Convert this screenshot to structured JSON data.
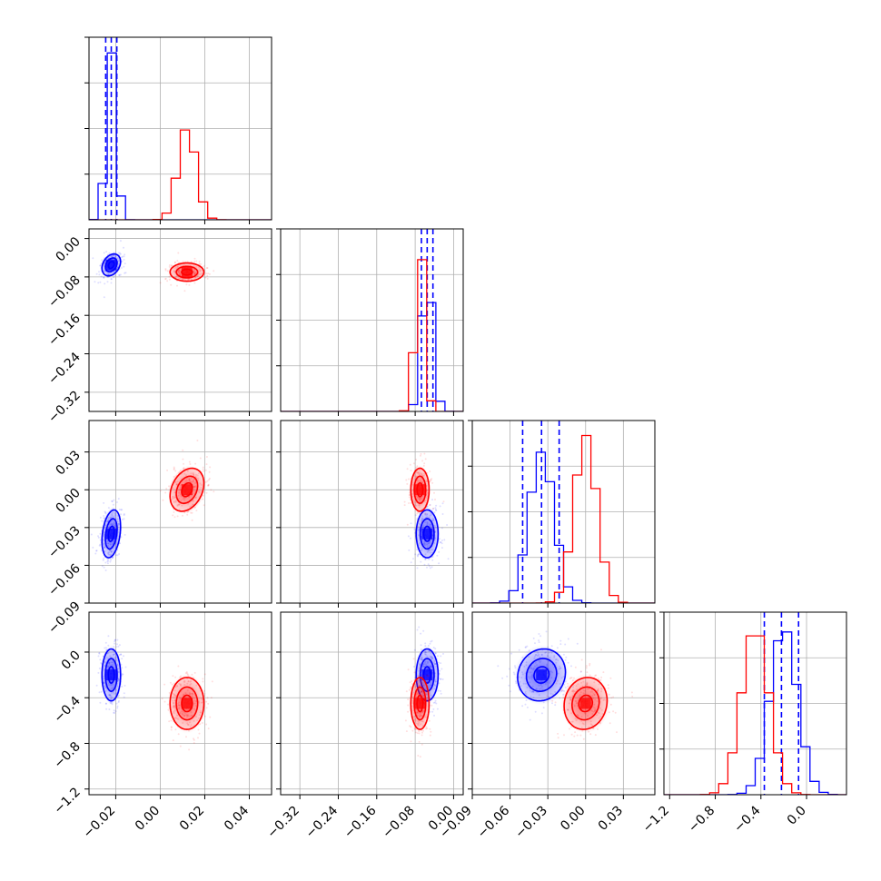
{
  "chart_data": {
    "type": "corner",
    "colors": {
      "series_a": "#0000ff",
      "series_b": "#ff0000",
      "grid": "#b0b0b0",
      "frame": "#000000"
    },
    "parameters": [
      {
        "range": [
          -0.032,
          0.05
        ],
        "ticks": [
          -0.02,
          0.0,
          0.02,
          0.04
        ],
        "tick_labels": [
          "−0.02",
          "0.00",
          "0.02",
          "0.04"
        ]
      },
      {
        "range": [
          -0.36,
          0.02
        ],
        "ticks": [
          -0.32,
          -0.24,
          -0.16,
          -0.08,
          0.0
        ],
        "tick_labels": [
          "−0.32",
          "−0.24",
          "−0.16",
          "−0.08",
          "0.00"
        ]
      },
      {
        "range": [
          -0.09,
          0.055
        ],
        "ticks": [
          -0.09,
          -0.06,
          -0.03,
          0.0,
          0.03
        ],
        "tick_labels": [
          "−0.09",
          "−0.06",
          "−0.03",
          "0.00",
          "0.03"
        ]
      },
      {
        "range": [
          -1.25,
          0.35
        ],
        "ticks": [
          -1.2,
          -0.8,
          -0.4,
          0.0
        ],
        "tick_labels": [
          "−1.2",
          "−0.8",
          "−0.4",
          "0.0"
        ]
      }
    ],
    "series": [
      {
        "color": "#0000ff",
        "mean": [
          -0.022,
          -0.055,
          -0.035,
          -0.2
        ],
        "std": [
          0.0022,
          0.012,
          0.01,
          0.12
        ],
        "corr": [
          [
            0,
            1,
            0.3
          ],
          [
            0,
            2,
            0.3
          ],
          [
            0,
            3,
            0.0
          ],
          [
            1,
            2,
            0.0
          ],
          [
            1,
            3,
            0.0
          ],
          [
            2,
            3,
            0.1
          ]
        ],
        "quantiles": [
          [
            -0.0245,
            -0.022,
            -0.0195
          ],
          [
            -0.067,
            -0.055,
            -0.043
          ],
          [
            -0.05,
            -0.035,
            -0.021
          ],
          [
            -0.37,
            -0.22,
            -0.07
          ]
        ]
      },
      {
        "color": "#ff0000",
        "mean": [
          0.012,
          -0.07,
          0.0,
          -0.45
        ],
        "std": [
          0.004,
          0.01,
          0.009,
          0.12
        ],
        "corr": [
          [
            0,
            1,
            0.0
          ],
          [
            0,
            2,
            0.3
          ],
          [
            0,
            3,
            0.0
          ],
          [
            1,
            2,
            0.0
          ],
          [
            1,
            3,
            0.0
          ],
          [
            2,
            3,
            0.1
          ]
        ]
      }
    ]
  }
}
